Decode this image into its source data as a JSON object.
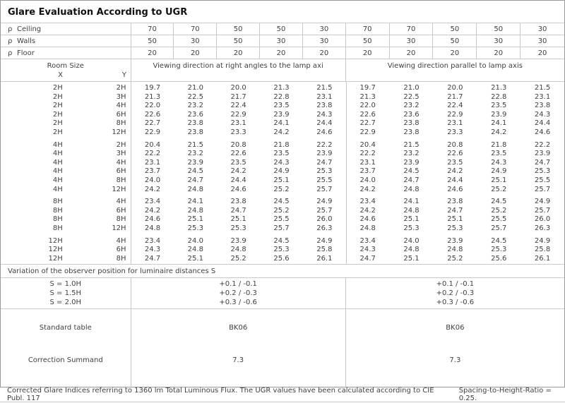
{
  "title": "Glare Evaluation According to UGR",
  "reflectance_rows": [
    {
      "symbol": "ρ",
      "label": "Ceiling",
      "values": [
        "70",
        "70",
        "50",
        "50",
        "30",
        "70",
        "70",
        "50",
        "50",
        "30"
      ]
    },
    {
      "symbol": "ρ",
      "label": "Walls",
      "values": [
        "50",
        "30",
        "50",
        "30",
        "30",
        "50",
        "30",
        "50",
        "30",
        "30"
      ]
    },
    {
      "symbol": "ρ",
      "label": "Floor",
      "values": [
        "20",
        "20",
        "20",
        "20",
        "20",
        "20",
        "20",
        "20",
        "20",
        "20"
      ]
    }
  ],
  "header": {
    "room_size": "Room Size",
    "x_label": "X",
    "y_label": "Y",
    "group1": "Viewing direction at right angles to the lamp axi",
    "group2": "Viewing direction parallel to lamp axis"
  },
  "ugr_groups": [
    {
      "rows": [
        {
          "x": "2H",
          "y": "2H",
          "right_angles": [
            "19.7",
            "21.0",
            "20.0",
            "21.3",
            "21.5"
          ],
          "parallel": [
            "19.7",
            "21.0",
            "20.0",
            "21.3",
            "21.5"
          ]
        },
        {
          "x": "2H",
          "y": "3H",
          "right_angles": [
            "21.3",
            "22.5",
            "21.7",
            "22.8",
            "23.1"
          ],
          "parallel": [
            "21.3",
            "22.5",
            "21.7",
            "22.8",
            "23.1"
          ]
        },
        {
          "x": "2H",
          "y": "4H",
          "right_angles": [
            "22.0",
            "23.2",
            "22.4",
            "23.5",
            "23.8"
          ],
          "parallel": [
            "22.0",
            "23.2",
            "22.4",
            "23.5",
            "23.8"
          ]
        },
        {
          "x": "2H",
          "y": "6H",
          "right_angles": [
            "22.6",
            "23.6",
            "22.9",
            "23.9",
            "24.3"
          ],
          "parallel": [
            "22.6",
            "23.6",
            "22.9",
            "23.9",
            "24.3"
          ]
        },
        {
          "x": "2H",
          "y": "8H",
          "right_angles": [
            "22.7",
            "23.8",
            "23.1",
            "24.1",
            "24.4"
          ],
          "parallel": [
            "22.7",
            "23.8",
            "23.1",
            "24.1",
            "24.4"
          ]
        },
        {
          "x": "2H",
          "y": "12H",
          "right_angles": [
            "22.9",
            "23.8",
            "23.3",
            "24.2",
            "24.6"
          ],
          "parallel": [
            "22.9",
            "23.8",
            "23.3",
            "24.2",
            "24.6"
          ]
        }
      ]
    },
    {
      "rows": [
        {
          "x": "4H",
          "y": "2H",
          "right_angles": [
            "20.4",
            "21.5",
            "20.8",
            "21.8",
            "22.2"
          ],
          "parallel": [
            "20.4",
            "21.5",
            "20.8",
            "21.8",
            "22.2"
          ]
        },
        {
          "x": "4H",
          "y": "3H",
          "right_angles": [
            "22.2",
            "23.2",
            "22.6",
            "23.5",
            "23.9"
          ],
          "parallel": [
            "22.2",
            "23.2",
            "22.6",
            "23.5",
            "23.9"
          ]
        },
        {
          "x": "4H",
          "y": "4H",
          "right_angles": [
            "23.1",
            "23.9",
            "23.5",
            "24.3",
            "24.7"
          ],
          "parallel": [
            "23.1",
            "23.9",
            "23.5",
            "24.3",
            "24.7"
          ]
        },
        {
          "x": "4H",
          "y": "6H",
          "right_angles": [
            "23.7",
            "24.5",
            "24.2",
            "24.9",
            "25.3"
          ],
          "parallel": [
            "23.7",
            "24.5",
            "24.2",
            "24.9",
            "25.3"
          ]
        },
        {
          "x": "4H",
          "y": "8H",
          "right_angles": [
            "24.0",
            "24.7",
            "24.4",
            "25.1",
            "25.5"
          ],
          "parallel": [
            "24.0",
            "24.7",
            "24.4",
            "25.1",
            "25.5"
          ]
        },
        {
          "x": "4H",
          "y": "12H",
          "right_angles": [
            "24.2",
            "24.8",
            "24.6",
            "25.2",
            "25.7"
          ],
          "parallel": [
            "24.2",
            "24.8",
            "24.6",
            "25.2",
            "25.7"
          ]
        }
      ]
    },
    {
      "rows": [
        {
          "x": "8H",
          "y": "4H",
          "right_angles": [
            "23.4",
            "24.1",
            "23.8",
            "24.5",
            "24.9"
          ],
          "parallel": [
            "23.4",
            "24.1",
            "23.8",
            "24.5",
            "24.9"
          ]
        },
        {
          "x": "8H",
          "y": "6H",
          "right_angles": [
            "24.2",
            "24.8",
            "24.7",
            "25.2",
            "25.7"
          ],
          "parallel": [
            "24.2",
            "24.8",
            "24.7",
            "25.2",
            "25.7"
          ]
        },
        {
          "x": "8H",
          "y": "8H",
          "right_angles": [
            "24.6",
            "25.1",
            "25.1",
            "25.5",
            "26.0"
          ],
          "parallel": [
            "24.6",
            "25.1",
            "25.1",
            "25.5",
            "26.0"
          ]
        },
        {
          "x": "8H",
          "y": "12H",
          "right_angles": [
            "24.8",
            "25.3",
            "25.3",
            "25.7",
            "26.3"
          ],
          "parallel": [
            "24.8",
            "25.3",
            "25.3",
            "25.7",
            "26.3"
          ]
        }
      ]
    },
    {
      "rows": [
        {
          "x": "12H",
          "y": "4H",
          "right_angles": [
            "23.4",
            "24.0",
            "23.9",
            "24.5",
            "24.9"
          ],
          "parallel": [
            "23.4",
            "24.0",
            "23.9",
            "24.5",
            "24.9"
          ]
        },
        {
          "x": "12H",
          "y": "6H",
          "right_angles": [
            "24.3",
            "24.8",
            "24.8",
            "25.3",
            "25.8"
          ],
          "parallel": [
            "24.3",
            "24.8",
            "24.8",
            "25.3",
            "25.8"
          ]
        },
        {
          "x": "12H",
          "y": "8H",
          "right_angles": [
            "24.7",
            "25.1",
            "25.2",
            "25.6",
            "26.1"
          ],
          "parallel": [
            "24.7",
            "25.1",
            "25.2",
            "25.6",
            "26.1"
          ]
        }
      ]
    }
  ],
  "variation_label": "Variation of the observer position for luminaire distances S",
  "variation_rows": [
    {
      "s": "S = 1.0H",
      "value1": "+0.1 / -0.1",
      "value2": "+0.1 / -0.1"
    },
    {
      "s": "S = 1.5H",
      "value1": "+0.2 / -0.3",
      "value2": "+0.2 / -0.3"
    },
    {
      "s": "S = 2.0H",
      "value1": "+0.3 / -0.6",
      "value2": "+0.3 / -0.6"
    }
  ],
  "standard_table": {
    "label": "Standard table",
    "value1": "BK06",
    "value2": "BK06"
  },
  "correction_summand": {
    "label": "Correction Summand",
    "value1": "7.3",
    "value2": "7.3"
  },
  "footer": {
    "text1": "Corrected Glare Indices referring to 1360 lm Total Luminous Flux. The UGR values have been calculated according to CIE Publ. 117",
    "text2": "Spacing-to-Height-Ratio = 0.25."
  }
}
